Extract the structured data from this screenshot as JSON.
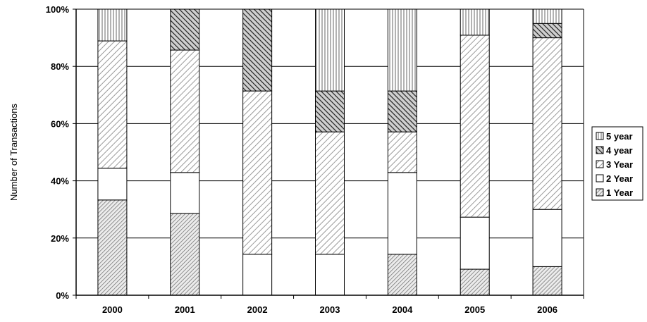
{
  "chart_data": {
    "type": "bar",
    "stacked": true,
    "percent_stacked": true,
    "title": "",
    "xlabel": "",
    "ylabel": "Number of Transactions",
    "ylim": [
      0,
      100
    ],
    "y_ticks": [
      "0%",
      "20%",
      "40%",
      "60%",
      "80%",
      "100%"
    ],
    "grid": "horizontal",
    "legend_position": "right",
    "categories": [
      "2000",
      "2001",
      "2002",
      "2003",
      "2004",
      "2005",
      "2006"
    ],
    "series": [
      {
        "name": "1 Year",
        "pattern": "diag-dense",
        "values": [
          33.3,
          28.6,
          0,
          0,
          14.3,
          9.1,
          10.0
        ]
      },
      {
        "name": "2 Year",
        "pattern": "white",
        "values": [
          11.1,
          14.3,
          14.3,
          14.3,
          28.6,
          18.2,
          20.0
        ]
      },
      {
        "name": "3 Year",
        "pattern": "diag-light",
        "values": [
          44.5,
          42.8,
          57.1,
          42.8,
          14.2,
          63.6,
          60.0
        ]
      },
      {
        "name": "4 year",
        "pattern": "diag-dark",
        "values": [
          0,
          14.3,
          28.6,
          14.3,
          14.3,
          0,
          5.0
        ]
      },
      {
        "name": "5 year",
        "pattern": "vertical",
        "values": [
          11.1,
          0,
          0,
          28.6,
          28.6,
          9.1,
          5.0
        ]
      }
    ],
    "colors": {
      "stroke": "#000000",
      "grid": "#000000",
      "background": "#ffffff"
    }
  }
}
